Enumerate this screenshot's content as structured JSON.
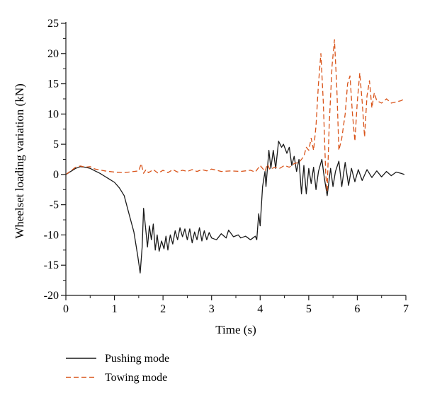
{
  "chart_data": {
    "type": "line",
    "title": "",
    "xlabel": "Time (s)",
    "ylabel": "Wheelset loading variation (kN)",
    "xlim": [
      0,
      7
    ],
    "ylim": [
      -20,
      25
    ],
    "x_ticks": [
      0,
      1,
      2,
      3,
      4,
      5,
      6,
      7
    ],
    "y_ticks": [
      -20,
      -15,
      -10,
      -5,
      0,
      5,
      10,
      15,
      20,
      25
    ],
    "grid": false,
    "legend_position": "bottom-left, below plot",
    "series": [
      {
        "name": "Pushing mode",
        "color": "#1a1a1a",
        "style": "solid",
        "points": [
          [
            0.0,
            0.0
          ],
          [
            0.1,
            0.5
          ],
          [
            0.2,
            1.0
          ],
          [
            0.3,
            1.3
          ],
          [
            0.4,
            1.2
          ],
          [
            0.5,
            1.0
          ],
          [
            0.6,
            0.6
          ],
          [
            0.7,
            0.2
          ],
          [
            0.8,
            -0.3
          ],
          [
            0.9,
            -0.8
          ],
          [
            1.0,
            -1.3
          ],
          [
            1.1,
            -2.2
          ],
          [
            1.2,
            -3.5
          ],
          [
            1.3,
            -6.5
          ],
          [
            1.4,
            -9.5
          ],
          [
            1.48,
            -13.5
          ],
          [
            1.53,
            -16.3
          ],
          [
            1.57,
            -12.0
          ],
          [
            1.6,
            -5.6
          ],
          [
            1.64,
            -8.8
          ],
          [
            1.68,
            -12.0
          ],
          [
            1.72,
            -8.5
          ],
          [
            1.76,
            -10.8
          ],
          [
            1.8,
            -8.2
          ],
          [
            1.84,
            -12.5
          ],
          [
            1.88,
            -10.0
          ],
          [
            1.92,
            -12.7
          ],
          [
            1.97,
            -11.0
          ],
          [
            2.02,
            -12.3
          ],
          [
            2.06,
            -10.2
          ],
          [
            2.1,
            -12.5
          ],
          [
            2.15,
            -10.0
          ],
          [
            2.2,
            -11.5
          ],
          [
            2.25,
            -9.3
          ],
          [
            2.3,
            -10.8
          ],
          [
            2.35,
            -8.8
          ],
          [
            2.4,
            -10.3
          ],
          [
            2.45,
            -9.0
          ],
          [
            2.5,
            -10.8
          ],
          [
            2.55,
            -9.0
          ],
          [
            2.6,
            -11.3
          ],
          [
            2.65,
            -9.5
          ],
          [
            2.7,
            -10.8
          ],
          [
            2.75,
            -8.8
          ],
          [
            2.8,
            -11.0
          ],
          [
            2.85,
            -9.3
          ],
          [
            2.9,
            -10.8
          ],
          [
            2.95,
            -9.6
          ],
          [
            3.0,
            -10.5
          ],
          [
            3.1,
            -10.8
          ],
          [
            3.2,
            -9.8
          ],
          [
            3.3,
            -10.5
          ],
          [
            3.35,
            -9.2
          ],
          [
            3.45,
            -10.3
          ],
          [
            3.55,
            -10.0
          ],
          [
            3.6,
            -10.5
          ],
          [
            3.7,
            -10.2
          ],
          [
            3.8,
            -10.8
          ],
          [
            3.9,
            -10.2
          ],
          [
            3.93,
            -10.8
          ],
          [
            3.97,
            -6.5
          ],
          [
            4.0,
            -8.5
          ],
          [
            4.05,
            -2.0
          ],
          [
            4.1,
            0.5
          ],
          [
            4.12,
            -2.0
          ],
          [
            4.18,
            4.0
          ],
          [
            4.22,
            1.0
          ],
          [
            4.27,
            4.0
          ],
          [
            4.32,
            1.0
          ],
          [
            4.38,
            5.5
          ],
          [
            4.44,
            4.5
          ],
          [
            4.48,
            5.0
          ],
          [
            4.55,
            3.5
          ],
          [
            4.6,
            4.5
          ],
          [
            4.65,
            1.5
          ],
          [
            4.7,
            3.0
          ],
          [
            4.75,
            0.5
          ],
          [
            4.8,
            2.5
          ],
          [
            4.85,
            -3.2
          ],
          [
            4.9,
            1.5
          ],
          [
            4.95,
            -3.2
          ],
          [
            5.0,
            1.0
          ],
          [
            5.05,
            -1.5
          ],
          [
            5.1,
            1.2
          ],
          [
            5.15,
            -2.5
          ],
          [
            5.2,
            0.5
          ],
          [
            5.27,
            2.5
          ],
          [
            5.32,
            -0.5
          ],
          [
            5.38,
            -3.5
          ],
          [
            5.45,
            1.0
          ],
          [
            5.5,
            -2.0
          ],
          [
            5.55,
            0.5
          ],
          [
            5.62,
            2.2
          ],
          [
            5.68,
            -2.0
          ],
          [
            5.75,
            2.0
          ],
          [
            5.82,
            -1.8
          ],
          [
            5.88,
            1.0
          ],
          [
            5.95,
            -1.2
          ],
          [
            6.02,
            0.8
          ],
          [
            6.1,
            -1.0
          ],
          [
            6.2,
            0.8
          ],
          [
            6.3,
            -0.5
          ],
          [
            6.4,
            0.6
          ],
          [
            6.5,
            -0.4
          ],
          [
            6.6,
            0.5
          ],
          [
            6.7,
            -0.2
          ],
          [
            6.8,
            0.4
          ],
          [
            6.9,
            0.2
          ],
          [
            6.97,
            0.0
          ]
        ]
      },
      {
        "name": "Towing mode",
        "color": "#d95319",
        "style": "dashed",
        "points": [
          [
            0.0,
            0.0
          ],
          [
            0.1,
            0.6
          ],
          [
            0.2,
            1.2
          ],
          [
            0.3,
            1.4
          ],
          [
            0.4,
            1.2
          ],
          [
            0.5,
            1.3
          ],
          [
            0.6,
            0.9
          ],
          [
            0.8,
            0.6
          ],
          [
            1.0,
            0.4
          ],
          [
            1.2,
            0.3
          ],
          [
            1.4,
            0.5
          ],
          [
            1.5,
            0.6
          ],
          [
            1.55,
            1.8
          ],
          [
            1.6,
            0.2
          ],
          [
            1.65,
            0.8
          ],
          [
            1.7,
            0.3
          ],
          [
            1.8,
            0.8
          ],
          [
            1.9,
            0.2
          ],
          [
            2.0,
            0.7
          ],
          [
            2.1,
            0.3
          ],
          [
            2.2,
            0.8
          ],
          [
            2.3,
            0.4
          ],
          [
            2.4,
            0.7
          ],
          [
            2.5,
            0.5
          ],
          [
            2.6,
            0.8
          ],
          [
            2.7,
            0.5
          ],
          [
            2.8,
            0.8
          ],
          [
            2.9,
            0.6
          ],
          [
            3.0,
            0.9
          ],
          [
            3.2,
            0.5
          ],
          [
            3.4,
            0.6
          ],
          [
            3.6,
            0.5
          ],
          [
            3.8,
            0.7
          ],
          [
            3.9,
            0.4
          ],
          [
            4.0,
            1.5
          ],
          [
            4.1,
            0.5
          ],
          [
            4.15,
            1.7
          ],
          [
            4.2,
            0.8
          ],
          [
            4.3,
            1.2
          ],
          [
            4.4,
            1.0
          ],
          [
            4.5,
            1.5
          ],
          [
            4.6,
            1.2
          ],
          [
            4.7,
            1.8
          ],
          [
            4.8,
            2.0
          ],
          [
            4.85,
            2.5
          ],
          [
            4.9,
            3.0
          ],
          [
            4.95,
            4.5
          ],
          [
            5.0,
            4.0
          ],
          [
            5.05,
            6.0
          ],
          [
            5.1,
            4.0
          ],
          [
            5.15,
            8.0
          ],
          [
            5.2,
            15.0
          ],
          [
            5.25,
            20.0
          ],
          [
            5.3,
            12.0
          ],
          [
            5.35,
            0.0
          ],
          [
            5.38,
            -2.8
          ],
          [
            5.42,
            8.0
          ],
          [
            5.48,
            18.0
          ],
          [
            5.53,
            22.3
          ],
          [
            5.58,
            14.0
          ],
          [
            5.62,
            4.0
          ],
          [
            5.68,
            6.0
          ],
          [
            5.75,
            10.0
          ],
          [
            5.8,
            15.0
          ],
          [
            5.85,
            16.3
          ],
          [
            5.9,
            10.0
          ],
          [
            5.95,
            5.5
          ],
          [
            6.0,
            12.0
          ],
          [
            6.05,
            16.8
          ],
          [
            6.1,
            12.0
          ],
          [
            6.15,
            6.2
          ],
          [
            6.2,
            13.0
          ],
          [
            6.25,
            15.5
          ],
          [
            6.3,
            11.0
          ],
          [
            6.35,
            13.5
          ],
          [
            6.4,
            12.2
          ],
          [
            6.5,
            11.8
          ],
          [
            6.6,
            12.5
          ],
          [
            6.7,
            11.8
          ],
          [
            6.8,
            12.0
          ],
          [
            6.9,
            12.2
          ],
          [
            6.97,
            12.5
          ]
        ]
      }
    ]
  }
}
